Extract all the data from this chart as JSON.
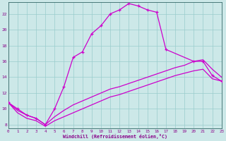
{
  "xlabel": "Windchill (Refroidissement éolien,°C)",
  "bg_color": "#cce8e8",
  "grid_color": "#99cccc",
  "line_color": "#cc00cc",
  "xmin": 0,
  "xmax": 23,
  "ymin": 7.5,
  "ymax": 23.5,
  "yticks": [
    8,
    10,
    12,
    14,
    16,
    18,
    20,
    22
  ],
  "xticks": [
    0,
    1,
    2,
    3,
    4,
    5,
    6,
    7,
    8,
    9,
    10,
    11,
    12,
    13,
    14,
    15,
    16,
    17,
    18,
    19,
    20,
    21,
    22,
    23
  ],
  "series1_x": [
    0,
    1,
    2,
    3,
    4,
    5,
    6,
    7,
    8,
    9,
    10,
    11,
    12,
    13,
    14,
    15,
    16,
    17,
    20,
    21,
    22,
    23
  ],
  "series1_y": [
    10.8,
    10.0,
    9.2,
    8.8,
    8.0,
    10.0,
    12.8,
    16.5,
    17.2,
    19.5,
    20.5,
    22.0,
    22.5,
    23.3,
    23.0,
    22.5,
    22.2,
    17.5,
    16.0,
    16.0,
    14.2,
    13.5
  ],
  "series2_x": [
    0,
    1,
    2,
    3,
    4,
    5,
    6,
    7,
    8,
    9,
    10,
    11,
    12,
    13,
    14,
    15,
    16,
    17,
    18,
    19,
    20,
    21,
    22,
    23
  ],
  "series2_y": [
    10.8,
    9.8,
    9.2,
    8.8,
    8.0,
    9.0,
    9.8,
    10.5,
    11.0,
    11.5,
    12.0,
    12.5,
    12.8,
    13.2,
    13.6,
    14.0,
    14.4,
    14.8,
    15.2,
    15.5,
    16.0,
    16.2,
    15.0,
    14.0
  ],
  "series3_x": [
    0,
    1,
    2,
    3,
    4,
    5,
    6,
    7,
    8,
    9,
    10,
    11,
    12,
    13,
    14,
    15,
    16,
    17,
    18,
    19,
    20,
    21,
    22,
    23
  ],
  "series3_y": [
    10.8,
    9.5,
    8.8,
    8.5,
    7.8,
    8.5,
    9.0,
    9.5,
    10.0,
    10.5,
    11.0,
    11.5,
    11.8,
    12.2,
    12.6,
    13.0,
    13.4,
    13.8,
    14.2,
    14.5,
    14.8,
    15.0,
    13.8,
    13.5
  ]
}
